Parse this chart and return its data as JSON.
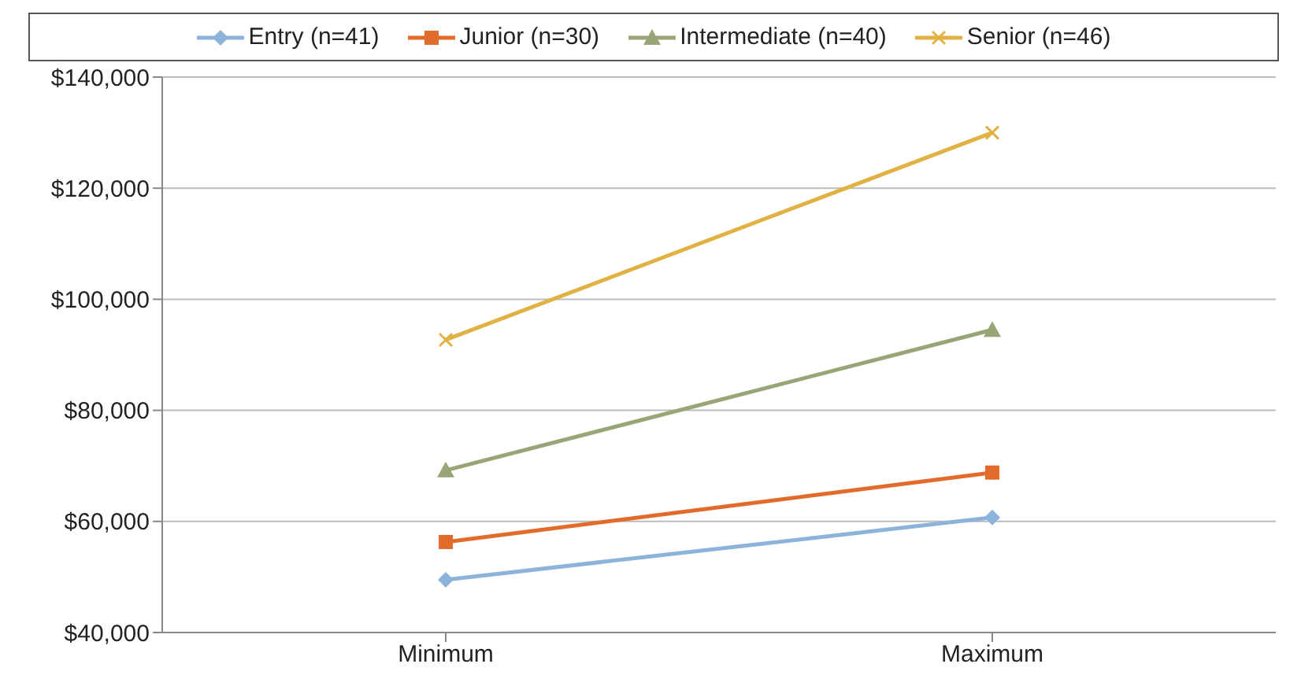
{
  "chart_data": {
    "type": "line",
    "categories": [
      "Minimum",
      "Maximum"
    ],
    "series": [
      {
        "name": "Entry (n=41)",
        "color": "#8cb3d9",
        "values": [
          49500,
          60700
        ],
        "marker": "diamond"
      },
      {
        "name": "Junior (n=30)",
        "color": "#e26b2b",
        "values": [
          56300,
          68800
        ],
        "marker": "square"
      },
      {
        "name": "Intermediate (n=40)",
        "color": "#98a677",
        "values": [
          69200,
          94500
        ],
        "marker": "triangle"
      },
      {
        "name": "Senior (n=46)",
        "color": "#e1b144",
        "values": [
          92700,
          130000
        ],
        "marker": "cross"
      }
    ],
    "ylim": [
      40000,
      140000
    ],
    "yticks": [
      {
        "value": 40000,
        "label": "$40,000"
      },
      {
        "value": 60000,
        "label": "$60,000"
      },
      {
        "value": 80000,
        "label": "$80,000"
      },
      {
        "value": 100000,
        "label": "$100,000"
      },
      {
        "value": 120000,
        "label": "$120,000"
      },
      {
        "value": 140000,
        "label": "$140,000"
      }
    ],
    "grid": "y",
    "legend": "top"
  }
}
